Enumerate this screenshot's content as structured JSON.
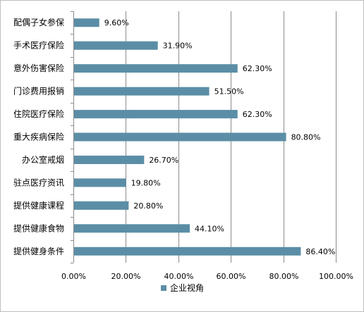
{
  "chart_data": {
    "type": "bar",
    "orientation": "horizontal",
    "categories": [
      "配偶子女参保",
      "手术医疗保险",
      "意外伤害保险",
      "门诊费用报销",
      "住院医疗保险",
      "重大疾病保险",
      "办公室戒烟",
      "驻点医疗资讯",
      "提供健康课程",
      "提供健康食物",
      "提供健身条件"
    ],
    "series": [
      {
        "name": "企业视角",
        "values": [
          9.6,
          31.9,
          62.3,
          51.5,
          62.3,
          80.8,
          26.7,
          19.8,
          20.8,
          44.1,
          86.4
        ],
        "labels": [
          "9.60%",
          "31.90%",
          "62.30%",
          "51.50%",
          "62.30%",
          "80.80%",
          "26.70%",
          "19.80%",
          "20.80%",
          "44.10%",
          "86.40%"
        ],
        "color": "#5b8ea6"
      }
    ],
    "xlim": [
      0,
      100
    ],
    "xticks": [
      "0.00%",
      "20.00%",
      "40.00%",
      "60.00%",
      "80.00%",
      "100.00%"
    ],
    "grid": true,
    "gridColor": "#8c8c8c",
    "legend": "bottom-center",
    "title": "",
    "xlabel": "",
    "ylabel": ""
  }
}
